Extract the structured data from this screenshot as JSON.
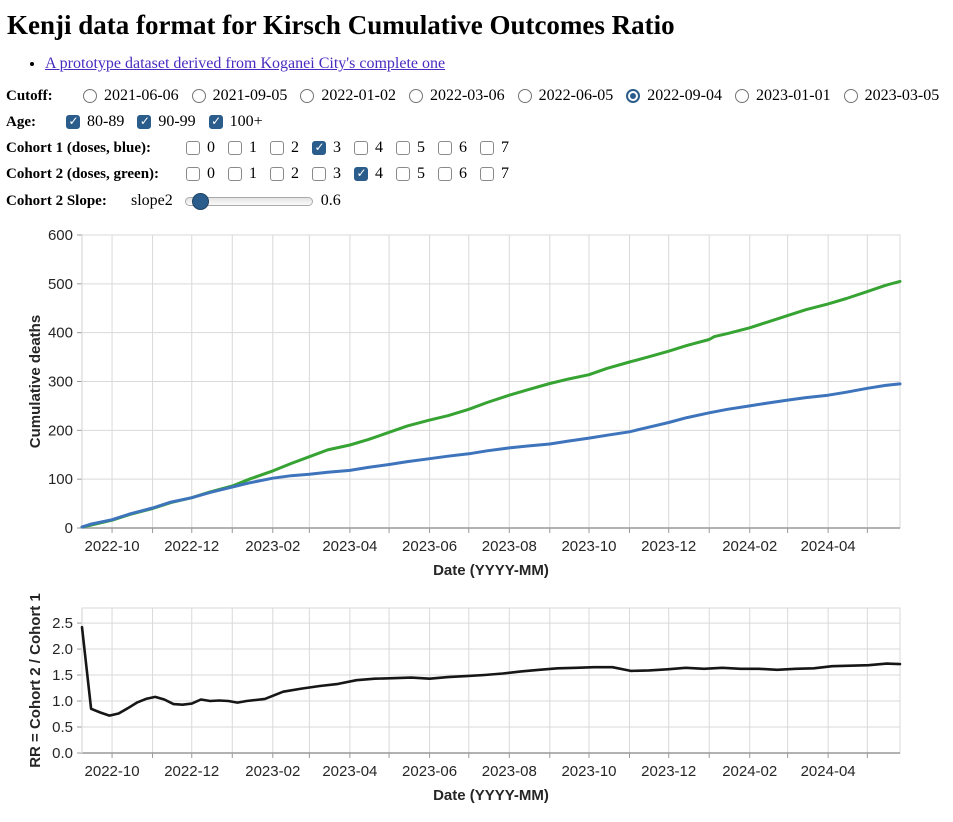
{
  "header": {
    "title": "Kenji data format for Kirsch Cumulative Outcomes Ratio",
    "link_label": "A prototype dataset derived from Koganei City's complete one"
  },
  "controls": {
    "cutoff": {
      "label": "Cutoff:",
      "options": [
        "2021-06-06",
        "2021-09-05",
        "2022-01-02",
        "2022-03-06",
        "2022-06-05",
        "2022-09-04",
        "2023-01-01",
        "2023-03-05"
      ],
      "selected": "2022-09-04"
    },
    "age": {
      "label": "Age:",
      "options": [
        "80-89",
        "90-99",
        "100+"
      ],
      "checked": [
        "80-89",
        "90-99",
        "100+"
      ]
    },
    "cohort1": {
      "label": "Cohort 1 (doses, blue):",
      "options": [
        "0",
        "1",
        "2",
        "3",
        "4",
        "5",
        "6",
        "7"
      ],
      "checked": [
        "3"
      ]
    },
    "cohort2": {
      "label": "Cohort 2 (doses, green):",
      "options": [
        "0",
        "1",
        "2",
        "3",
        "4",
        "5",
        "6",
        "7"
      ],
      "checked": [
        "4"
      ]
    },
    "slope": {
      "label": "Cohort 2 Slope:",
      "slider_name": "slope2",
      "value": "0.6",
      "thumb_percent": 5
    }
  },
  "colors": {
    "cohort1_blue": "#3e74bb",
    "cohort2_green": "#36a333",
    "rr_black": "#161616",
    "control_navy": "#2b5d8c",
    "grid": "#d9d9d9",
    "axis": "#999999"
  },
  "chart_data": [
    {
      "type": "line",
      "ylabel": "Cumulative deaths",
      "xlabel": "Date (YYYY-MM)",
      "x_domain": [
        "2022-09-08",
        "2024-05-26"
      ],
      "ylim": [
        0,
        600
      ],
      "yticks": [
        0,
        100,
        200,
        300,
        400,
        500,
        600
      ],
      "ytick_labels": [
        "0",
        "100",
        "200",
        "300",
        "400",
        "500",
        "600"
      ],
      "xtick_labeled_months": [
        "2022-10",
        "2022-12",
        "2023-02",
        "2023-04",
        "2023-06",
        "2023-08",
        "2023-10",
        "2023-12",
        "2024-02",
        "2024-04"
      ],
      "grid": true,
      "legend": "none",
      "series": [
        {
          "name": "cohort2-green",
          "color_key": "cohort2_green",
          "points": [
            [
              "2022-09-08",
              2
            ],
            [
              "2022-09-15",
              6
            ],
            [
              "2022-10-01",
              16
            ],
            [
              "2022-10-15",
              28
            ],
            [
              "2022-11-01",
              40
            ],
            [
              "2022-11-15",
              52
            ],
            [
              "2022-12-01",
              62
            ],
            [
              "2022-12-15",
              74
            ],
            [
              "2023-01-01",
              86
            ],
            [
              "2023-01-15",
              101
            ],
            [
              "2023-02-01",
              117
            ],
            [
              "2023-02-15",
              132
            ],
            [
              "2023-03-01",
              146
            ],
            [
              "2023-03-15",
              160
            ],
            [
              "2023-04-01",
              170
            ],
            [
              "2023-04-15",
              181
            ],
            [
              "2023-05-01",
              196
            ],
            [
              "2023-05-15",
              209
            ],
            [
              "2023-06-01",
              221
            ],
            [
              "2023-06-15",
              230
            ],
            [
              "2023-07-01",
              243
            ],
            [
              "2023-07-15",
              257
            ],
            [
              "2023-08-01",
              272
            ],
            [
              "2023-08-15",
              283
            ],
            [
              "2023-09-01",
              296
            ],
            [
              "2023-09-15",
              305
            ],
            [
              "2023-10-01",
              314
            ],
            [
              "2023-10-15",
              327
            ],
            [
              "2023-11-01",
              340
            ],
            [
              "2023-11-15",
              350
            ],
            [
              "2023-12-01",
              362
            ],
            [
              "2023-12-15",
              374
            ],
            [
              "2024-01-01",
              386
            ],
            [
              "2024-01-05",
              392
            ],
            [
              "2024-01-15",
              398
            ],
            [
              "2024-02-01",
              410
            ],
            [
              "2024-02-15",
              422
            ],
            [
              "2024-03-01",
              435
            ],
            [
              "2024-03-15",
              447
            ],
            [
              "2024-04-01",
              459
            ],
            [
              "2024-04-15",
              470
            ],
            [
              "2024-05-01",
              484
            ],
            [
              "2024-05-15",
              497
            ],
            [
              "2024-05-26",
              505
            ]
          ]
        },
        {
          "name": "cohort1-blue",
          "color_key": "cohort1_blue",
          "points": [
            [
              "2022-09-08",
              2
            ],
            [
              "2022-09-15",
              8
            ],
            [
              "2022-10-01",
              17
            ],
            [
              "2022-10-15",
              29
            ],
            [
              "2022-11-01",
              41
            ],
            [
              "2022-11-15",
              53
            ],
            [
              "2022-12-01",
              62
            ],
            [
              "2022-12-15",
              73
            ],
            [
              "2023-01-01",
              84
            ],
            [
              "2023-01-15",
              93
            ],
            [
              "2023-02-01",
              102
            ],
            [
              "2023-02-15",
              107
            ],
            [
              "2023-03-01",
              110
            ],
            [
              "2023-03-15",
              114
            ],
            [
              "2023-04-01",
              118
            ],
            [
              "2023-04-15",
              124
            ],
            [
              "2023-05-01",
              130
            ],
            [
              "2023-05-15",
              136
            ],
            [
              "2023-06-01",
              142
            ],
            [
              "2023-06-15",
              147
            ],
            [
              "2023-07-01",
              152
            ],
            [
              "2023-07-15",
              158
            ],
            [
              "2023-08-01",
              164
            ],
            [
              "2023-08-15",
              168
            ],
            [
              "2023-09-01",
              172
            ],
            [
              "2023-09-15",
              178
            ],
            [
              "2023-10-01",
              184
            ],
            [
              "2023-10-15",
              190
            ],
            [
              "2023-11-01",
              197
            ],
            [
              "2023-11-15",
              206
            ],
            [
              "2023-12-01",
              216
            ],
            [
              "2023-12-15",
              226
            ],
            [
              "2024-01-01",
              236
            ],
            [
              "2024-01-15",
              243
            ],
            [
              "2024-02-01",
              250
            ],
            [
              "2024-02-15",
              256
            ],
            [
              "2024-03-01",
              262
            ],
            [
              "2024-03-15",
              267
            ],
            [
              "2024-04-01",
              272
            ],
            [
              "2024-04-15",
              278
            ],
            [
              "2024-05-01",
              286
            ],
            [
              "2024-05-15",
              292
            ],
            [
              "2024-05-26",
              295
            ]
          ]
        }
      ]
    },
    {
      "type": "line",
      "ylabel": "RR = Cohort 2 / Cohort 1",
      "xlabel": "Date (YYYY-MM)",
      "x_domain": [
        "2022-09-08",
        "2024-05-26"
      ],
      "ylim": [
        0,
        2.79
      ],
      "yticks": [
        0,
        0.5,
        1.0,
        1.5,
        2.0,
        2.5
      ],
      "ytick_labels": [
        "0.0",
        "0.5",
        "1.0",
        "1.5",
        "2.0",
        "2.5"
      ],
      "xtick_labeled_months": [
        "2022-10",
        "2022-12",
        "2023-02",
        "2023-04",
        "2023-06",
        "2023-08",
        "2023-10",
        "2023-12",
        "2024-02",
        "2024-04"
      ],
      "grid": true,
      "legend": "none",
      "series": [
        {
          "name": "rr-ratio",
          "color_key": "rr_black",
          "points": [
            [
              "2022-09-08",
              2.42
            ],
            [
              "2022-09-15",
              0.85
            ],
            [
              "2022-09-22",
              0.78
            ],
            [
              "2022-09-29",
              0.72
            ],
            [
              "2022-10-06",
              0.76
            ],
            [
              "2022-10-13",
              0.86
            ],
            [
              "2022-10-20",
              0.97
            ],
            [
              "2022-10-27",
              1.04
            ],
            [
              "2022-11-03",
              1.08
            ],
            [
              "2022-11-10",
              1.03
            ],
            [
              "2022-11-17",
              0.94
            ],
            [
              "2022-11-24",
              0.93
            ],
            [
              "2022-12-01",
              0.95
            ],
            [
              "2022-12-08",
              1.03
            ],
            [
              "2022-12-15",
              1.0
            ],
            [
              "2022-12-22",
              1.01
            ],
            [
              "2022-12-29",
              1.0
            ],
            [
              "2023-01-05",
              0.97
            ],
            [
              "2023-01-12",
              1.0
            ],
            [
              "2023-01-19",
              1.02
            ],
            [
              "2023-01-26",
              1.04
            ],
            [
              "2023-02-09",
              1.18
            ],
            [
              "2023-02-23",
              1.24
            ],
            [
              "2023-03-09",
              1.29
            ],
            [
              "2023-03-23",
              1.33
            ],
            [
              "2023-04-06",
              1.4
            ],
            [
              "2023-04-20",
              1.43
            ],
            [
              "2023-05-04",
              1.44
            ],
            [
              "2023-05-18",
              1.45
            ],
            [
              "2023-06-01",
              1.43
            ],
            [
              "2023-06-15",
              1.46
            ],
            [
              "2023-06-29",
              1.48
            ],
            [
              "2023-07-13",
              1.5
            ],
            [
              "2023-07-27",
              1.53
            ],
            [
              "2023-08-10",
              1.57
            ],
            [
              "2023-08-24",
              1.6
            ],
            [
              "2023-09-07",
              1.63
            ],
            [
              "2023-09-21",
              1.64
            ],
            [
              "2023-10-05",
              1.65
            ],
            [
              "2023-10-19",
              1.65
            ],
            [
              "2023-11-02",
              1.58
            ],
            [
              "2023-11-16",
              1.59
            ],
            [
              "2023-11-30",
              1.61
            ],
            [
              "2023-12-14",
              1.64
            ],
            [
              "2023-12-28",
              1.62
            ],
            [
              "2024-01-11",
              1.64
            ],
            [
              "2024-01-25",
              1.62
            ],
            [
              "2024-02-08",
              1.62
            ],
            [
              "2024-02-22",
              1.6
            ],
            [
              "2024-03-07",
              1.62
            ],
            [
              "2024-03-21",
              1.63
            ],
            [
              "2024-04-04",
              1.67
            ],
            [
              "2024-04-18",
              1.68
            ],
            [
              "2024-05-02",
              1.69
            ],
            [
              "2024-05-16",
              1.72
            ],
            [
              "2024-05-26",
              1.71
            ]
          ]
        }
      ]
    }
  ]
}
